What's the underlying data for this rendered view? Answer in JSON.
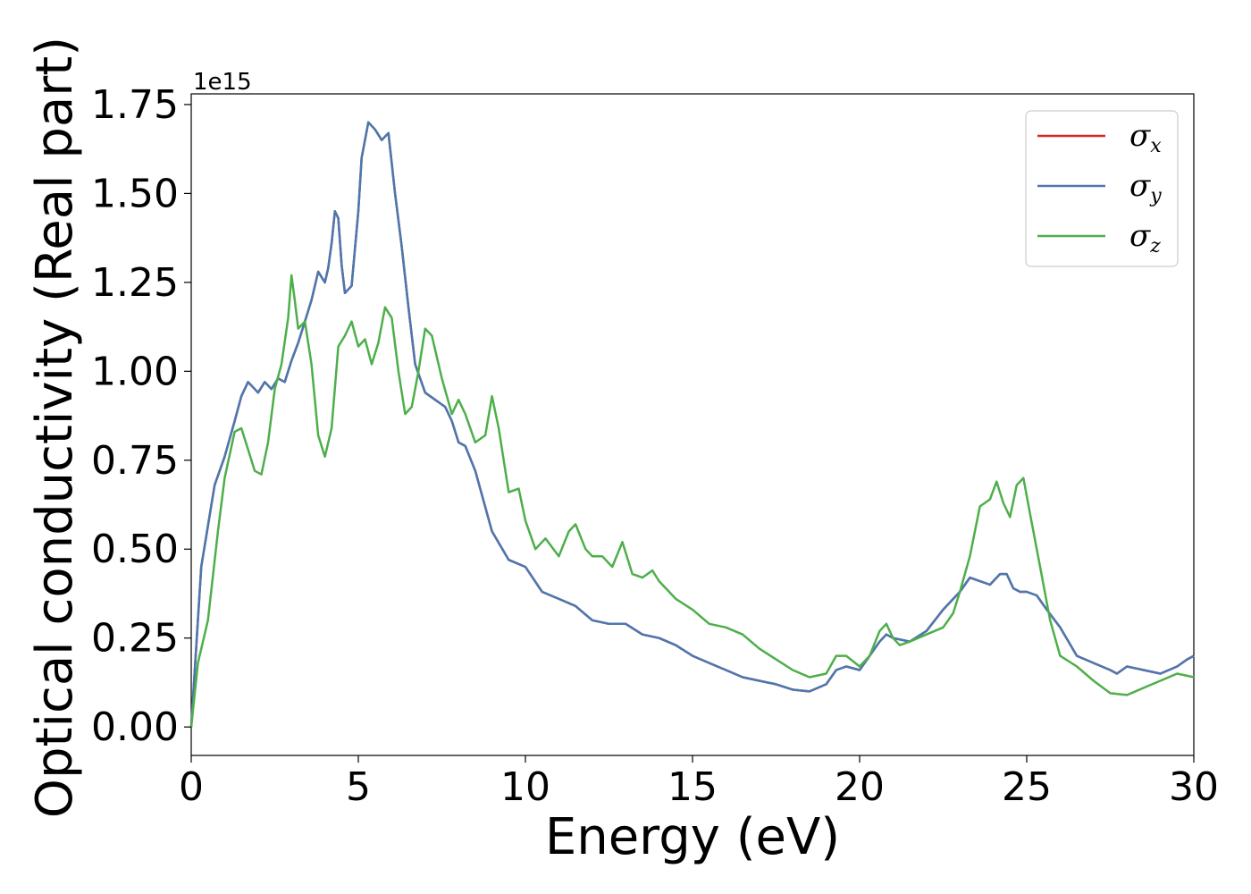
{
  "chart_data": {
    "type": "line",
    "xlabel": "Energy (eV)",
    "ylabel": "Optical conductivity (Real part)",
    "y_offset_label": "1e15",
    "xlim": [
      0,
      30
    ],
    "ylim": [
      -0.08,
      1.78
    ],
    "x_ticks": [
      0,
      5,
      10,
      15,
      20,
      25,
      30
    ],
    "x_tick_labels": [
      "0",
      "5",
      "10",
      "15",
      "20",
      "25",
      "30"
    ],
    "y_ticks": [
      0,
      0.25,
      0.5,
      0.75,
      1.0,
      1.25,
      1.5,
      1.75
    ],
    "y_tick_labels": [
      "0.00",
      "0.25",
      "0.50",
      "0.75",
      "1.00",
      "1.25",
      "1.50",
      "1.75"
    ],
    "grid": false,
    "legend_position": "top-right",
    "series": [
      {
        "name": "σ",
        "subscript": "x",
        "color": "#d62728",
        "x": [
          0,
          0.3,
          0.7,
          1.0,
          1.3,
          1.5,
          1.7,
          1.9,
          2.0,
          2.2,
          2.4,
          2.6,
          2.8,
          3.0,
          3.2,
          3.4,
          3.6,
          3.8,
          4.0,
          4.1,
          4.2,
          4.3,
          4.4,
          4.5,
          4.6,
          4.8,
          5.0,
          5.1,
          5.3,
          5.5,
          5.7,
          5.9,
          6.1,
          6.3,
          6.5,
          6.7,
          7.0,
          7.3,
          7.6,
          7.8,
          8.0,
          8.2,
          8.5,
          9.0,
          9.5,
          10.0,
          10.5,
          11.0,
          11.5,
          12.0,
          12.5,
          13.0,
          13.5,
          14.0,
          14.5,
          15.0,
          15.5,
          16.0,
          16.5,
          17.0,
          17.5,
          18.0,
          18.5,
          19.0,
          19.3,
          19.6,
          20.0,
          20.3,
          20.6,
          20.8,
          21.0,
          21.5,
          22.0,
          22.5,
          23.0,
          23.3,
          23.6,
          23.9,
          24.2,
          24.4,
          24.6,
          24.8,
          25.0,
          25.3,
          25.6,
          26.0,
          26.5,
          27.0,
          27.5,
          27.7,
          28.0,
          28.5,
          29.0,
          29.5,
          29.8,
          30.0
        ],
        "values": [
          0.0,
          0.45,
          0.68,
          0.76,
          0.86,
          0.93,
          0.97,
          0.95,
          0.94,
          0.97,
          0.95,
          0.98,
          0.97,
          1.03,
          1.08,
          1.14,
          1.2,
          1.28,
          1.25,
          1.29,
          1.36,
          1.45,
          1.43,
          1.3,
          1.22,
          1.24,
          1.45,
          1.6,
          1.7,
          1.68,
          1.65,
          1.67,
          1.5,
          1.35,
          1.18,
          1.02,
          0.94,
          0.92,
          0.9,
          0.86,
          0.8,
          0.79,
          0.72,
          0.55,
          0.47,
          0.45,
          0.38,
          0.36,
          0.34,
          0.3,
          0.29,
          0.29,
          0.26,
          0.25,
          0.23,
          0.2,
          0.18,
          0.16,
          0.14,
          0.13,
          0.12,
          0.105,
          0.1,
          0.12,
          0.16,
          0.17,
          0.16,
          0.2,
          0.24,
          0.26,
          0.25,
          0.24,
          0.27,
          0.33,
          0.38,
          0.42,
          0.41,
          0.4,
          0.43,
          0.43,
          0.39,
          0.38,
          0.38,
          0.37,
          0.33,
          0.28,
          0.2,
          0.18,
          0.16,
          0.15,
          0.17,
          0.16,
          0.15,
          0.17,
          0.19,
          0.2
        ]
      },
      {
        "name": "σ",
        "subscript": "y",
        "color": "#4a78b0",
        "x": [
          0,
          0.3,
          0.7,
          1.0,
          1.3,
          1.5,
          1.7,
          1.9,
          2.0,
          2.2,
          2.4,
          2.6,
          2.8,
          3.0,
          3.2,
          3.4,
          3.6,
          3.8,
          4.0,
          4.1,
          4.2,
          4.3,
          4.4,
          4.5,
          4.6,
          4.8,
          5.0,
          5.1,
          5.3,
          5.5,
          5.7,
          5.9,
          6.1,
          6.3,
          6.5,
          6.7,
          7.0,
          7.3,
          7.6,
          7.8,
          8.0,
          8.2,
          8.5,
          9.0,
          9.5,
          10.0,
          10.5,
          11.0,
          11.5,
          12.0,
          12.5,
          13.0,
          13.5,
          14.0,
          14.5,
          15.0,
          15.5,
          16.0,
          16.5,
          17.0,
          17.5,
          18.0,
          18.5,
          19.0,
          19.3,
          19.6,
          20.0,
          20.3,
          20.6,
          20.8,
          21.0,
          21.5,
          22.0,
          22.5,
          23.0,
          23.3,
          23.6,
          23.9,
          24.2,
          24.4,
          24.6,
          24.8,
          25.0,
          25.3,
          25.6,
          26.0,
          26.5,
          27.0,
          27.5,
          27.7,
          28.0,
          28.5,
          29.0,
          29.5,
          29.8,
          30.0
        ],
        "values": [
          0.0,
          0.45,
          0.68,
          0.76,
          0.86,
          0.93,
          0.97,
          0.95,
          0.94,
          0.97,
          0.95,
          0.98,
          0.97,
          1.03,
          1.08,
          1.14,
          1.2,
          1.28,
          1.25,
          1.29,
          1.36,
          1.45,
          1.43,
          1.3,
          1.22,
          1.24,
          1.45,
          1.6,
          1.7,
          1.68,
          1.65,
          1.67,
          1.5,
          1.35,
          1.18,
          1.02,
          0.94,
          0.92,
          0.9,
          0.86,
          0.8,
          0.79,
          0.72,
          0.55,
          0.47,
          0.45,
          0.38,
          0.36,
          0.34,
          0.3,
          0.29,
          0.29,
          0.26,
          0.25,
          0.23,
          0.2,
          0.18,
          0.16,
          0.14,
          0.13,
          0.12,
          0.105,
          0.1,
          0.12,
          0.16,
          0.17,
          0.16,
          0.2,
          0.24,
          0.26,
          0.25,
          0.24,
          0.27,
          0.33,
          0.38,
          0.42,
          0.41,
          0.4,
          0.43,
          0.43,
          0.39,
          0.38,
          0.38,
          0.37,
          0.33,
          0.28,
          0.2,
          0.18,
          0.16,
          0.15,
          0.17,
          0.16,
          0.15,
          0.17,
          0.19,
          0.2
        ]
      },
      {
        "name": "σ",
        "subscript": "z",
        "color": "#4daf4a",
        "x": [
          0,
          0.2,
          0.5,
          0.8,
          1.0,
          1.3,
          1.5,
          1.7,
          1.9,
          2.1,
          2.3,
          2.5,
          2.7,
          2.9,
          3.0,
          3.1,
          3.2,
          3.4,
          3.6,
          3.8,
          4.0,
          4.2,
          4.4,
          4.6,
          4.8,
          5.0,
          5.2,
          5.4,
          5.6,
          5.8,
          6.0,
          6.2,
          6.4,
          6.6,
          6.8,
          7.0,
          7.2,
          7.5,
          7.8,
          8.0,
          8.2,
          8.5,
          8.8,
          9.0,
          9.2,
          9.5,
          9.8,
          10.0,
          10.3,
          10.6,
          11.0,
          11.3,
          11.5,
          11.8,
          12.0,
          12.3,
          12.6,
          12.9,
          13.2,
          13.5,
          13.8,
          14.0,
          14.5,
          15.0,
          15.5,
          16.0,
          16.5,
          17.0,
          17.5,
          18.0,
          18.5,
          19.0,
          19.3,
          19.6,
          20.0,
          20.3,
          20.6,
          20.8,
          21.0,
          21.2,
          21.5,
          22.0,
          22.5,
          22.8,
          23.0,
          23.3,
          23.6,
          23.9,
          24.1,
          24.3,
          24.5,
          24.7,
          24.9,
          25.1,
          25.4,
          25.7,
          26.0,
          26.5,
          27.0,
          27.5,
          28.0,
          28.5,
          29.0,
          29.5,
          30.0
        ],
        "values": [
          0.0,
          0.18,
          0.3,
          0.55,
          0.7,
          0.83,
          0.84,
          0.78,
          0.72,
          0.71,
          0.8,
          0.95,
          1.02,
          1.15,
          1.27,
          1.2,
          1.12,
          1.14,
          1.02,
          0.82,
          0.76,
          0.84,
          1.07,
          1.1,
          1.14,
          1.07,
          1.09,
          1.02,
          1.08,
          1.18,
          1.15,
          1.0,
          0.88,
          0.9,
          1.0,
          1.12,
          1.1,
          0.98,
          0.88,
          0.92,
          0.88,
          0.8,
          0.82,
          0.93,
          0.84,
          0.66,
          0.67,
          0.58,
          0.5,
          0.53,
          0.48,
          0.55,
          0.57,
          0.5,
          0.48,
          0.48,
          0.45,
          0.52,
          0.43,
          0.42,
          0.44,
          0.41,
          0.36,
          0.33,
          0.29,
          0.28,
          0.26,
          0.22,
          0.19,
          0.16,
          0.14,
          0.15,
          0.2,
          0.2,
          0.17,
          0.2,
          0.27,
          0.29,
          0.25,
          0.23,
          0.24,
          0.26,
          0.28,
          0.32,
          0.38,
          0.48,
          0.62,
          0.64,
          0.69,
          0.63,
          0.59,
          0.68,
          0.7,
          0.6,
          0.45,
          0.3,
          0.2,
          0.17,
          0.13,
          0.095,
          0.09,
          0.11,
          0.13,
          0.15,
          0.14
        ]
      }
    ]
  }
}
